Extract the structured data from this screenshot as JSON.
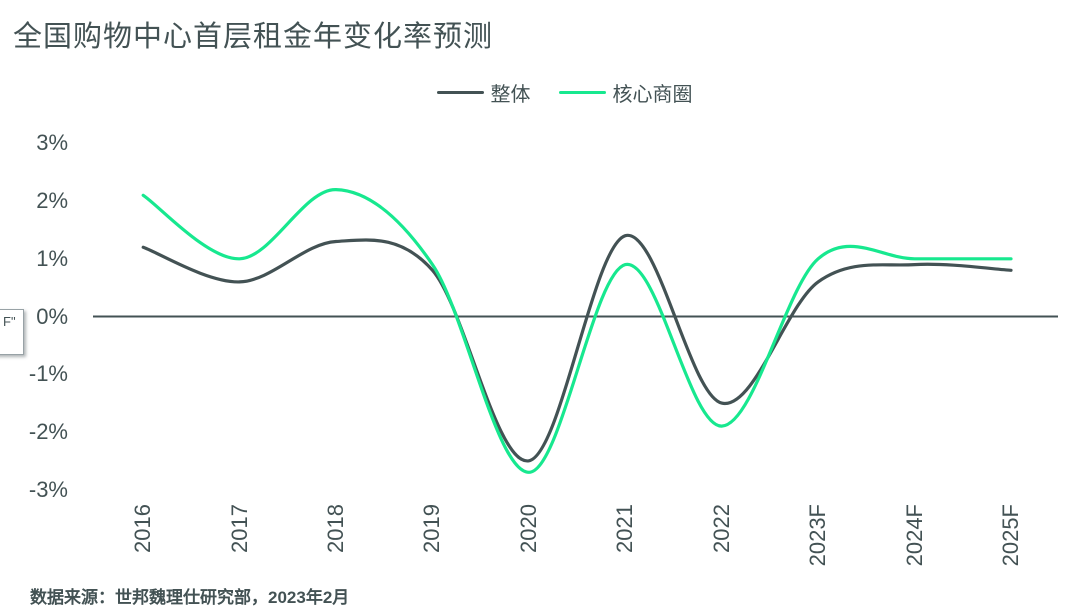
{
  "title": "全国购物中心首层租金年变化率预测",
  "source": "数据来源：世邦魏理仕研究部，2023年2月",
  "tooltip_fragment_text": "F\"",
  "colors": {
    "overall_line": "#435254",
    "core_line": "#17E88F",
    "axis_line": "#435254",
    "text": "#435254"
  },
  "chart_data": {
    "type": "line",
    "title": "全国购物中心首层租金年变化率预测",
    "categories": [
      "2016",
      "2017",
      "2018",
      "2019",
      "2020",
      "2021",
      "2022",
      "2023F",
      "2024F",
      "2025F"
    ],
    "series": [
      {
        "name": "整体",
        "color": "#435254",
        "values": [
          1.2,
          0.6,
          1.3,
          0.8,
          -2.5,
          1.4,
          -1.5,
          0.6,
          0.9,
          0.8
        ]
      },
      {
        "name": "核心商圈",
        "color": "#17E88F",
        "values": [
          2.1,
          1.0,
          2.2,
          0.9,
          -2.7,
          0.9,
          -1.9,
          1.0,
          1.0,
          1.0
        ]
      }
    ],
    "yticks": [
      "3%",
      "2%",
      "1%",
      "0%",
      "-1%",
      "-2%",
      "-3%"
    ],
    "ytick_values": [
      3,
      2,
      1,
      0,
      -1,
      -2,
      -3
    ],
    "ylim": [
      -3,
      3
    ],
    "unit": "%",
    "grid": false,
    "zero_baseline": true,
    "smoothing": "spline",
    "legend_position": "top-center",
    "xlabel": "",
    "ylabel": ""
  }
}
